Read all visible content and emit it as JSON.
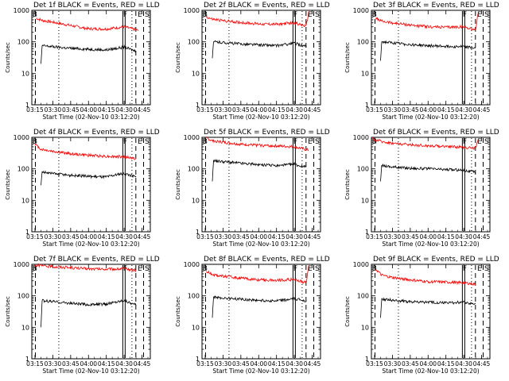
{
  "chart_data": [
    {
      "type": "line",
      "title": "Det 1f BLACK = Events, RED = LLD",
      "xlabel": "Start Time (02-Nov-10 03:12:20)",
      "ylabel": "Counts/sec",
      "yscale": "log",
      "ylim": [
        1,
        1000
      ],
      "xlim": [
        "03:12:20",
        "04:52:00"
      ],
      "xtick_labels": [
        "03:15",
        "03:30",
        "03:45",
        "04:00",
        "04:15",
        "04:30",
        "04:45"
      ],
      "ytick_labels": [
        "1",
        "10",
        "100",
        "1000"
      ],
      "markers": [
        "B",
        "F",
        "E",
        "S"
      ],
      "series": [
        {
          "name": "LLD",
          "color": "#ff0000",
          "x": [
            "03:16",
            "03:21",
            "03:30",
            "03:45",
            "04:00",
            "04:15",
            "04:30",
            "04:42"
          ],
          "values": [
            560,
            480,
            420,
            330,
            260,
            255,
            300,
            230
          ]
        },
        {
          "name": "Events",
          "color": "#000000",
          "x": [
            "03:20",
            "03:21",
            "03:30",
            "03:45",
            "04:00",
            "04:15",
            "04:30",
            "04:40"
          ],
          "values": [
            20,
            75,
            70,
            62,
            58,
            55,
            68,
            50
          ]
        }
      ]
    },
    {
      "type": "line",
      "title": "Det 2f BLACK = Events, RED = LLD",
      "xlabel": "Start Time (02-Nov-10 03:12:20)",
      "ylabel": "Counts/sec",
      "yscale": "log",
      "ylim": [
        1,
        1000
      ],
      "xlim": [
        "03:12:20",
        "04:52:00"
      ],
      "xtick_labels": [
        "03:15",
        "03:30",
        "03:45",
        "04:00",
        "04:15",
        "04:30",
        "04:45"
      ],
      "ytick_labels": [
        "1",
        "10",
        "100",
        "1000"
      ],
      "markers": [
        "B",
        "F",
        "E",
        "S"
      ],
      "series": [
        {
          "name": "LLD",
          "color": "#ff0000",
          "x": [
            "03:16",
            "03:21",
            "03:30",
            "03:45",
            "04:00",
            "04:15",
            "04:30",
            "04:40",
            "04:42"
          ],
          "values": [
            620,
            520,
            470,
            410,
            370,
            360,
            400,
            310,
            850
          ]
        },
        {
          "name": "Events",
          "color": "#000000",
          "x": [
            "03:21",
            "03:22",
            "03:30",
            "03:45",
            "04:00",
            "04:15",
            "04:30",
            "04:40"
          ],
          "values": [
            30,
            100,
            95,
            85,
            80,
            75,
            90,
            70
          ]
        }
      ]
    },
    {
      "type": "line",
      "title": "Det 3f BLACK = Events, RED = LLD",
      "xlabel": "Start Time (02-Nov-10 03:12:20)",
      "ylabel": "Counts/sec",
      "yscale": "log",
      "ylim": [
        1,
        1000
      ],
      "xlim": [
        "03:12:20",
        "04:52:00"
      ],
      "xtick_labels": [
        "03:15",
        "03:30",
        "03:45",
        "04:00",
        "04:15",
        "04:30",
        "04:45"
      ],
      "ytick_labels": [
        "1",
        "10",
        "100",
        "1000"
      ],
      "markers": [
        "B",
        "F",
        "E",
        "S"
      ],
      "series": [
        {
          "name": "LLD",
          "color": "#ff0000",
          "x": [
            "03:16",
            "03:21",
            "03:30",
            "03:45",
            "04:00",
            "04:15",
            "04:30",
            "04:40",
            "04:42"
          ],
          "values": [
            560,
            450,
            400,
            340,
            300,
            290,
            300,
            240,
            800
          ]
        },
        {
          "name": "Events",
          "color": "#000000",
          "x": [
            "03:20",
            "03:21",
            "03:30",
            "03:45",
            "04:00",
            "04:15",
            "04:30",
            "04:40"
          ],
          "values": [
            25,
            100,
            92,
            82,
            75,
            72,
            70,
            62
          ]
        }
      ]
    },
    {
      "type": "line",
      "title": "Det 4f BLACK = Events, RED = LLD",
      "xlabel": "Start Time (02-Nov-10 03:12:20)",
      "ylabel": "Counts/sec",
      "yscale": "log",
      "ylim": [
        1,
        1000
      ],
      "xlim": [
        "03:12:20",
        "04:52:00"
      ],
      "xtick_labels": [
        "03:15",
        "03:30",
        "03:45",
        "04:00",
        "04:15",
        "04:30",
        "04:45"
      ],
      "ytick_labels": [
        "1",
        "10",
        "100",
        "1000"
      ],
      "markers": [
        "B",
        "F",
        "E",
        "S"
      ],
      "series": [
        {
          "name": "LLD",
          "color": "#ff0000",
          "x": [
            "03:15",
            "03:20",
            "03:30",
            "03:45",
            "04:00",
            "04:15",
            "04:30",
            "04:40"
          ],
          "values": [
            600,
            420,
            360,
            300,
            270,
            250,
            240,
            210
          ]
        },
        {
          "name": "Events",
          "color": "#000000",
          "x": [
            "03:20",
            "03:21",
            "03:30",
            "03:45",
            "04:00",
            "04:15",
            "04:30",
            "04:40"
          ],
          "values": [
            30,
            80,
            70,
            62,
            58,
            55,
            72,
            55
          ]
        }
      ]
    },
    {
      "type": "line",
      "title": "Det 5f BLACK = Events, RED = LLD",
      "xlabel": "Start Time (02-Nov-10 03:12:20)",
      "ylabel": "Counts/sec",
      "yscale": "log",
      "ylim": [
        1,
        1000
      ],
      "xlim": [
        "03:12:20",
        "04:52:00"
      ],
      "xtick_labels": [
        "03:15",
        "03:30",
        "03:45",
        "04:00",
        "04:15",
        "04:30",
        "04:45"
      ],
      "ytick_labels": [
        "1",
        "10",
        "100",
        "1000"
      ],
      "markers": [
        "B",
        "F",
        "E",
        "S"
      ],
      "series": [
        {
          "name": "LLD",
          "color": "#ff0000",
          "x": [
            "03:16",
            "03:21",
            "03:30",
            "03:45",
            "04:00",
            "04:15",
            "04:30",
            "04:42"
          ],
          "values": [
            950,
            780,
            700,
            600,
            560,
            530,
            500,
            390
          ]
        },
        {
          "name": "Events",
          "color": "#000000",
          "x": [
            "03:21",
            "03:22",
            "03:30",
            "03:45",
            "04:00",
            "04:15",
            "04:30",
            "04:40"
          ],
          "values": [
            40,
            180,
            170,
            150,
            135,
            125,
            140,
            110
          ]
        }
      ]
    },
    {
      "type": "line",
      "title": "Det 6f BLACK = Events, RED = LLD",
      "xlabel": "Start Time (02-Nov-10 03:12:20)",
      "ylabel": "Counts/sec",
      "yscale": "log",
      "ylim": [
        1,
        1000
      ],
      "xlim": [
        "03:12:20",
        "04:52:00"
      ],
      "xtick_labels": [
        "03:15",
        "03:30",
        "03:45",
        "04:00",
        "04:15",
        "04:30",
        "04:45"
      ],
      "ytick_labels": [
        "1",
        "10",
        "100",
        "1000"
      ],
      "markers": [
        "B",
        "F",
        "E",
        "S"
      ],
      "series": [
        {
          "name": "LLD",
          "color": "#ff0000",
          "x": [
            "03:13",
            "03:20",
            "03:30",
            "03:45",
            "04:00",
            "04:15",
            "04:30",
            "04:40",
            "04:42"
          ],
          "values": [
            900,
            750,
            650,
            580,
            540,
            520,
            480,
            450,
            900
          ]
        },
        {
          "name": "Events",
          "color": "#000000",
          "x": [
            "03:20",
            "03:21",
            "03:30",
            "03:45",
            "04:00",
            "04:15",
            "04:30",
            "04:40"
          ],
          "values": [
            40,
            130,
            115,
            105,
            100,
            95,
            90,
            78
          ]
        }
      ]
    },
    {
      "type": "line",
      "title": "Det 7f BLACK = Events, RED = LLD",
      "xlabel": "Start Time (02-Nov-10 03:12:20)",
      "ylabel": "Counts/sec",
      "yscale": "log",
      "ylim": [
        1,
        1000
      ],
      "xlim": [
        "03:12:20",
        "04:52:00"
      ],
      "xtick_labels": [
        "03:15",
        "03:30",
        "03:45",
        "04:00",
        "04:15",
        "04:30",
        "04:45"
      ],
      "ytick_labels": [
        "1",
        "10",
        "100",
        "1000"
      ],
      "markers": [
        "B",
        "F",
        "E",
        "S"
      ],
      "series": [
        {
          "name": "LLD",
          "color": "#ff0000",
          "x": [
            "03:15",
            "03:20",
            "03:30",
            "03:45",
            "04:00",
            "04:15",
            "04:30",
            "04:40"
          ],
          "values": [
            950,
            900,
            850,
            780,
            720,
            700,
            720,
            650
          ]
        },
        {
          "name": "Events",
          "color": "#000000",
          "x": [
            "03:20",
            "03:21",
            "03:30",
            "03:45",
            "04:00",
            "04:15",
            "04:30",
            "04:40"
          ],
          "values": [
            10,
            70,
            65,
            58,
            52,
            55,
            72,
            50
          ]
        }
      ]
    },
    {
      "type": "line",
      "title": "Det 8f BLACK = Events, RED = LLD",
      "xlabel": "Start Time (02-Nov-10 03:12:20)",
      "ylabel": "Counts/sec",
      "yscale": "log",
      "ylim": [
        1,
        1000
      ],
      "xlim": [
        "03:12:20",
        "04:52:00"
      ],
      "xtick_labels": [
        "03:15",
        "03:30",
        "03:45",
        "04:00",
        "04:15",
        "04:30",
        "04:45"
      ],
      "ytick_labels": [
        "1",
        "10",
        "100",
        "1000"
      ],
      "markers": [
        "B",
        "F",
        "E",
        "S"
      ],
      "series": [
        {
          "name": "LLD",
          "color": "#ff0000",
          "x": [
            "03:16",
            "03:21",
            "03:30",
            "03:45",
            "04:00",
            "04:15",
            "04:30",
            "04:40",
            "04:42"
          ],
          "values": [
            600,
            480,
            420,
            360,
            320,
            310,
            330,
            260,
            850
          ]
        },
        {
          "name": "Events",
          "color": "#000000",
          "x": [
            "03:21",
            "03:22",
            "03:30",
            "03:45",
            "04:00",
            "04:15",
            "04:30",
            "04:40"
          ],
          "values": [
            20,
            90,
            85,
            78,
            72,
            68,
            80,
            70
          ]
        }
      ]
    },
    {
      "type": "line",
      "title": "Det 9f BLACK = Events, RED = LLD",
      "xlabel": "Start Time (02-Nov-10 03:12:20)",
      "ylabel": "Counts/sec",
      "yscale": "log",
      "ylim": [
        1,
        1000
      ],
      "xlim": [
        "03:12:20",
        "04:52:00"
      ],
      "xtick_labels": [
        "03:15",
        "03:30",
        "03:45",
        "04:00",
        "04:15",
        "04:30",
        "04:45"
      ],
      "ytick_labels": [
        "1",
        "10",
        "100",
        "1000"
      ],
      "markers": [
        "B",
        "F",
        "E",
        "S"
      ],
      "series": [
        {
          "name": "LLD",
          "color": "#ff0000",
          "x": [
            "03:16",
            "03:21",
            "03:30",
            "03:45",
            "04:00",
            "04:15",
            "04:30",
            "04:40"
          ],
          "values": [
            700,
            450,
            380,
            320,
            280,
            270,
            260,
            230
          ]
        },
        {
          "name": "Events",
          "color": "#000000",
          "x": [
            "03:20",
            "03:21",
            "03:30",
            "03:45",
            "04:00",
            "04:15",
            "04:30",
            "04:40"
          ],
          "values": [
            20,
            80,
            72,
            65,
            62,
            60,
            62,
            55
          ]
        }
      ]
    }
  ]
}
